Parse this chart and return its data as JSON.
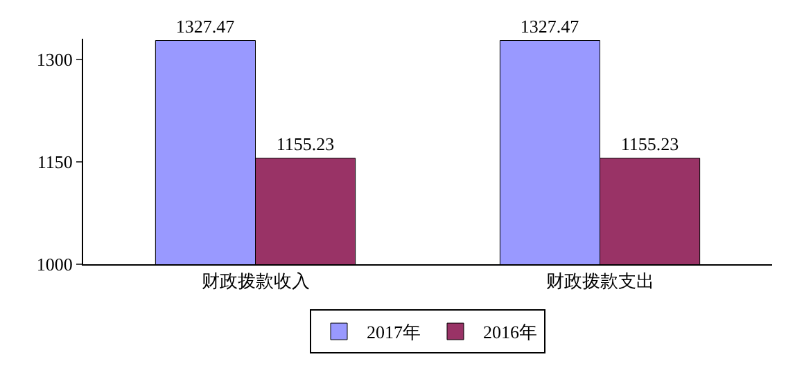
{
  "chart_data": {
    "type": "bar",
    "categories": [
      "财政拨款收入",
      "财政拨款支出"
    ],
    "series": [
      {
        "name": "2017年",
        "color": "#9999ff",
        "values": [
          1327.47,
          1327.47
        ]
      },
      {
        "name": "2016年",
        "color": "#993366",
        "values": [
          1155.23,
          1155.23
        ]
      }
    ],
    "ylim": [
      1000,
      1330
    ],
    "yticks": [
      1000,
      1150,
      1300
    ],
    "grid": false,
    "legend": "bottom",
    "data_labels": true
  }
}
